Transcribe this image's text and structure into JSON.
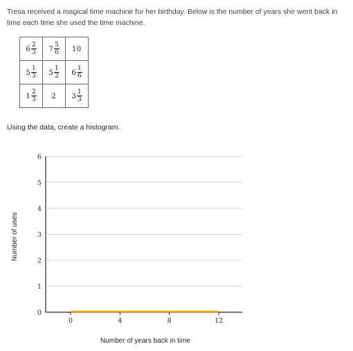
{
  "intro": "Tresa received a magical time machine for her birthday. Below is the number of years she went back in time each time she used the time machine.",
  "table": [
    [
      {
        "whole": "6",
        "num": "2",
        "den": "3"
      },
      {
        "whole": "7",
        "num": "5",
        "den": "6"
      },
      {
        "whole": "10"
      }
    ],
    [
      {
        "whole": "5",
        "num": "1",
        "den": "3"
      },
      {
        "whole": "5",
        "num": "1",
        "den": "2"
      },
      {
        "whole": "6",
        "num": "1",
        "den": "6"
      }
    ],
    [
      {
        "whole": "1",
        "num": "2",
        "den": "3"
      },
      {
        "whole": "2"
      },
      {
        "whole": "3",
        "num": "1",
        "den": "3"
      }
    ]
  ],
  "prompt": "Using the data, create a histogram.",
  "chart_data": {
    "type": "bar",
    "xlabel": "Number of years back in time",
    "ylabel": "Number of uses",
    "xticks": [
      "0",
      "4",
      "8",
      "12"
    ],
    "yticks": [
      "0",
      "1",
      "2",
      "3",
      "4",
      "5",
      "6"
    ],
    "ylim": [
      0,
      6
    ],
    "bins": [
      {
        "start": 0,
        "end": 4,
        "value": 0
      },
      {
        "start": 4,
        "end": 8,
        "value": 0
      },
      {
        "start": 8,
        "end": 12,
        "value": 0
      }
    ],
    "grid": true,
    "bar_color": "#f2a900"
  }
}
